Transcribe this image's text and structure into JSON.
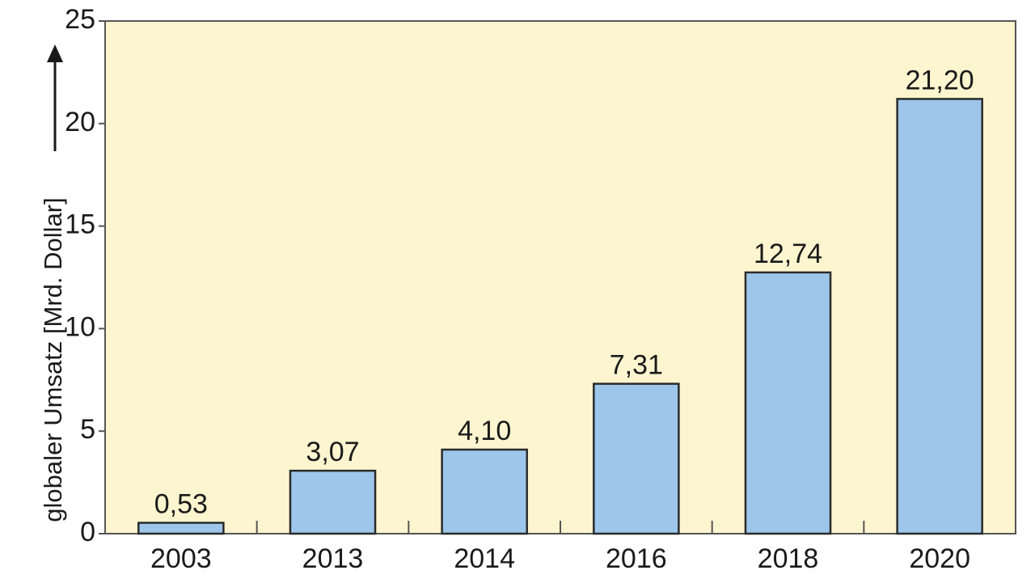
{
  "chart_data": {
    "type": "bar",
    "categories": [
      "2003",
      "2013",
      "2014",
      "2016",
      "2018",
      "2020"
    ],
    "values": [
      0.53,
      3.07,
      4.1,
      7.31,
      12.74,
      21.2
    ],
    "value_labels": [
      "0,53",
      "3,07",
      "4,10",
      "7,31",
      "12,74",
      "21,20"
    ],
    "title": "",
    "xlabel": "",
    "ylabel": "globaler Umsatz [Mrd. Dollar]",
    "ylim": [
      0,
      25
    ],
    "yticks": [
      0,
      5,
      10,
      15,
      20,
      25
    ],
    "ytick_labels": [
      "0",
      "5",
      "10",
      "15",
      "20",
      "25"
    ],
    "grid": false,
    "legend": "none",
    "colors": {
      "plot_background": "#fdf5cf",
      "bar_fill": "#9dc6ea",
      "bar_stroke": "#2b2b2b",
      "axis": "#555555"
    }
  }
}
